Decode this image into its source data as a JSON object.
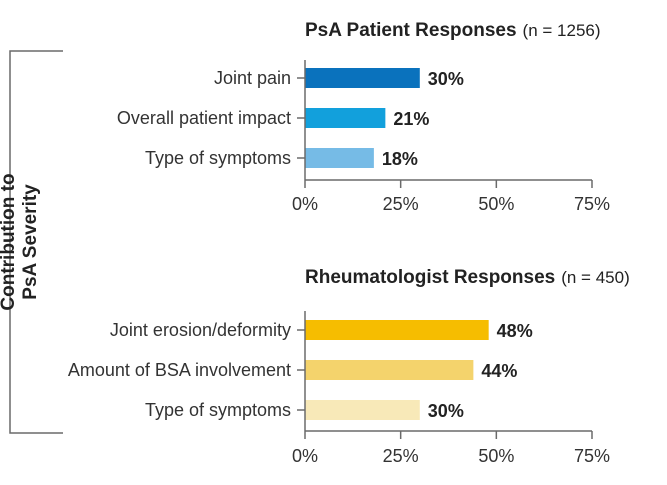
{
  "side_label": [
    "Contribution to",
    "PsA Severity"
  ],
  "chart_data": [
    {
      "type": "bar",
      "orientation": "horizontal",
      "title": "PsA Patient Responses",
      "title_suffix": "(n = 1256)",
      "categories": [
        "Joint pain",
        "Overall patient impact",
        "Type of symptoms"
      ],
      "values": [
        30,
        21,
        18
      ],
      "value_labels": [
        "30%",
        "21%",
        "18%"
      ],
      "colors": [
        "#0a72bd",
        "#12a0dc",
        "#76bbe6"
      ],
      "xlim": [
        0,
        75
      ],
      "ticks": [
        0,
        25,
        50,
        75
      ],
      "tick_labels": [
        "0%",
        "25%",
        "50%",
        "75%"
      ],
      "grid": false
    },
    {
      "type": "bar",
      "orientation": "horizontal",
      "title": "Rheumatologist Responses",
      "title_suffix": "(n = 450)",
      "categories": [
        "Joint erosion/deformity",
        "Amount of BSA involvement",
        "Type of symptoms"
      ],
      "values": [
        48,
        44,
        30
      ],
      "value_labels": [
        "48%",
        "44%",
        "30%"
      ],
      "colors": [
        "#f6bd00",
        "#f4d36c",
        "#f8e9b8"
      ],
      "xlim": [
        0,
        75
      ],
      "ticks": [
        0,
        25,
        50,
        75
      ],
      "tick_labels": [
        "0%",
        "25%",
        "50%",
        "75%"
      ],
      "grid": false
    }
  ]
}
